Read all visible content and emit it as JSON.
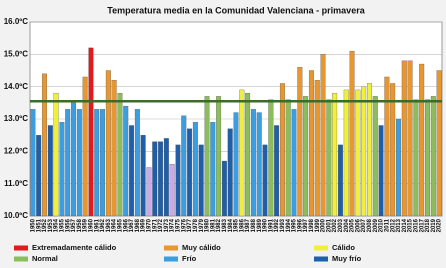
{
  "chart_data": {
    "type": "bar",
    "title": "Temperatura media en la Comunidad Valenciana - primavera",
    "categories": [
      "1950",
      "1951",
      "1952",
      "1953",
      "1954",
      "1955",
      "1956",
      "1957",
      "1958",
      "1959",
      "1960",
      "1961",
      "1962",
      "1963",
      "1964",
      "1965",
      "1966",
      "1967",
      "1968",
      "1969",
      "1970",
      "1971",
      "1972",
      "1973",
      "1974",
      "1975",
      "1976",
      "1977",
      "1978",
      "1979",
      "1980",
      "1981",
      "1982",
      "1983",
      "1984",
      "1985",
      "1986",
      "1987",
      "1988",
      "1989",
      "1990",
      "1991",
      "1992",
      "1993",
      "1994",
      "1995",
      "1996",
      "1997",
      "1998",
      "1999",
      "2000",
      "2001",
      "2002",
      "2003",
      "2004",
      "2005",
      "2006",
      "2007",
      "2008",
      "2009",
      "2010",
      "2011",
      "2012",
      "2013",
      "2014",
      "2015",
      "2016",
      "2017",
      "2018",
      "2019",
      "2020"
    ],
    "values": [
      13.3,
      12.5,
      14.4,
      12.8,
      13.8,
      12.9,
      13.3,
      13.5,
      13.3,
      14.3,
      15.2,
      13.3,
      13.3,
      14.5,
      14.2,
      13.8,
      13.4,
      12.8,
      13.3,
      12.5,
      11.5,
      12.3,
      12.3,
      12.4,
      11.6,
      12.2,
      13.1,
      12.7,
      12.9,
      12.2,
      13.7,
      12.9,
      13.7,
      11.7,
      12.7,
      13.2,
      13.9,
      13.8,
      13.3,
      13.2,
      12.2,
      13.6,
      12.8,
      14.1,
      13.6,
      13.3,
      14.6,
      13.7,
      14.5,
      14.2,
      15.0,
      13.6,
      13.8,
      12.2,
      13.9,
      15.1,
      13.9,
      14.0,
      14.1,
      13.7,
      12.8,
      14.3,
      14.1,
      13.0,
      14.8,
      14.8,
      13.6,
      14.7,
      13.6,
      13.7,
      14.5
    ],
    "colors": [
      "#3a9ee0",
      "#1f5ea8",
      "#e8962f",
      "#1f5ea8",
      "#f0ef3c",
      "#3a9ee0",
      "#3a9ee0",
      "#3a9ee0",
      "#3a9ee0",
      "#e8962f",
      "#e31a1c",
      "#3a9ee0",
      "#3a9ee0",
      "#e8962f",
      "#e8962f",
      "#8bbd5a",
      "#3a9ee0",
      "#1f5ea8",
      "#3a9ee0",
      "#1f5ea8",
      "#c9a9e6",
      "#1f5ea8",
      "#1f5ea8",
      "#1f5ea8",
      "#c9a9e6",
      "#1f5ea8",
      "#3a9ee0",
      "#1f5ea8",
      "#3a9ee0",
      "#1f5ea8",
      "#8bbd5a",
      "#3a9ee0",
      "#8bbd5a",
      "#1f5ea8",
      "#1f5ea8",
      "#3a9ee0",
      "#f0ef3c",
      "#8bbd5a",
      "#3a9ee0",
      "#3a9ee0",
      "#1f5ea8",
      "#8bbd5a",
      "#1f5ea8",
      "#e8962f",
      "#8bbd5a",
      "#3a9ee0",
      "#e8962f",
      "#8bbd5a",
      "#e8962f",
      "#e8962f",
      "#e8962f",
      "#8bbd5a",
      "#f0ef3c",
      "#1f5ea8",
      "#f0ef3c",
      "#e8962f",
      "#f0ef3c",
      "#f0ef3c",
      "#f0ef3c",
      "#8bbd5a",
      "#1f5ea8",
      "#e8962f",
      "#e8962f",
      "#3a9ee0",
      "#e8962f",
      "#e8962f",
      "#8bbd5a",
      "#e8962f",
      "#8bbd5a",
      "#8bbd5a",
      "#e8962f"
    ],
    "reference_line": 13.55,
    "reference_color": "#3d6b2a",
    "ylim": [
      10,
      16
    ],
    "yticks": [
      {
        "value": 10,
        "label": "10.0ºC"
      },
      {
        "value": 11,
        "label": "11.0ºC"
      },
      {
        "value": 12,
        "label": "12.0ºC"
      },
      {
        "value": 13,
        "label": "13.0ºC"
      },
      {
        "value": 14,
        "label": "14.0ºC"
      },
      {
        "value": 15,
        "label": "15.0ºC"
      },
      {
        "value": 16,
        "label": "16.0ºC"
      }
    ],
    "grid": true,
    "legend": [
      {
        "name": "Extremadamente cálido",
        "color": "#e31a1c"
      },
      {
        "name": "Muy cálido",
        "color": "#e8962f"
      },
      {
        "name": "Cálido",
        "color": "#f0ef3c"
      },
      {
        "name": "Normal",
        "color": "#8bbd5a"
      },
      {
        "name": "Frío",
        "color": "#3a9ee0"
      },
      {
        "name": "Muy frío",
        "color": "#1f5ea8"
      }
    ]
  }
}
